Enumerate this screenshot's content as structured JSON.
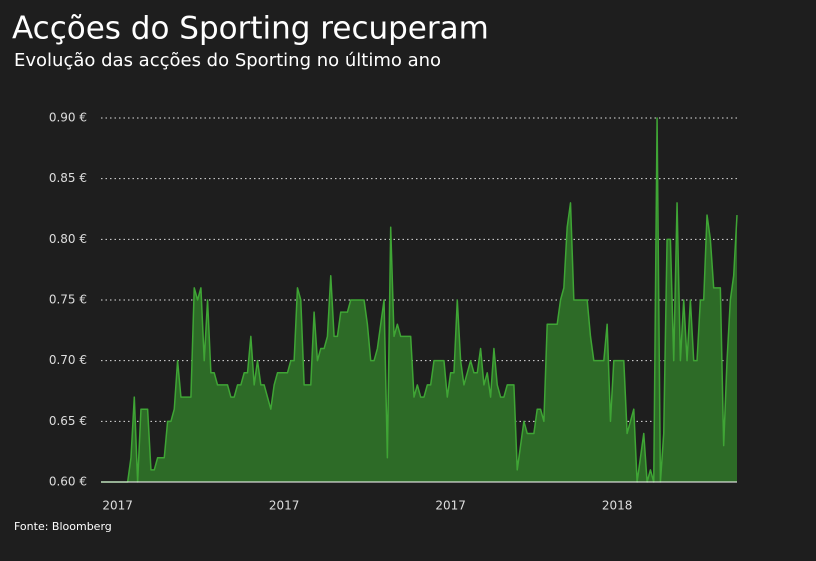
{
  "chart_data": {
    "type": "area",
    "title": "Acções do Sporting recuperam",
    "subtitle": "Evolução das acções do Sporting no último ano",
    "source": "Fonte: Bloomberg",
    "color": "#3fa535",
    "fill_color": "#2d6b27",
    "grid": true,
    "ylim": [
      0.6,
      0.9
    ],
    "yticks": [
      {
        "value": 0.6,
        "label": "0.60 €"
      },
      {
        "value": 0.65,
        "label": "0.65 €"
      },
      {
        "value": 0.7,
        "label": "0.70 €"
      },
      {
        "value": 0.75,
        "label": "0.75 €"
      },
      {
        "value": 0.8,
        "label": "0.80 €"
      },
      {
        "value": 0.85,
        "label": "0.85 €"
      },
      {
        "value": 0.9,
        "label": "0.90 €"
      }
    ],
    "categories": [
      null,
      null,
      null,
      null,
      null,
      "2017",
      null,
      null,
      null,
      null,
      null,
      null,
      null,
      null,
      null,
      null,
      null,
      null,
      null,
      null,
      null,
      null,
      null,
      null,
      null,
      null,
      null,
      null,
      null,
      null,
      null,
      null,
      null,
      null,
      null,
      null,
      null,
      null,
      null,
      null,
      null,
      null,
      null,
      null,
      null,
      null,
      null,
      null,
      null,
      null,
      null,
      null,
      null,
      null,
      null,
      "2017",
      null,
      null,
      null,
      null,
      null,
      null,
      null,
      null,
      null,
      null,
      null,
      null,
      null,
      null,
      null,
      null,
      null,
      null,
      null,
      null,
      null,
      null,
      null,
      null,
      null,
      null,
      null,
      null,
      null,
      null,
      null,
      null,
      null,
      null,
      null,
      null,
      null,
      null,
      null,
      null,
      null,
      null,
      null,
      null,
      null,
      null,
      null,
      null,
      null,
      "2017",
      null,
      null,
      null,
      null,
      null,
      null,
      null,
      null,
      null,
      null,
      null,
      null,
      null,
      null,
      null,
      null,
      null,
      null,
      null,
      null,
      null,
      null,
      null,
      null,
      null,
      null,
      null,
      null,
      null,
      null,
      null,
      null,
      null,
      null,
      null,
      null,
      null,
      null,
      null,
      null,
      null,
      null,
      null,
      null,
      null,
      null,
      null,
      null,
      null,
      "2018",
      null,
      null,
      null,
      null,
      null,
      null,
      null,
      null,
      null,
      null,
      null,
      null,
      null,
      null,
      null,
      null,
      null,
      null,
      null,
      null,
      null,
      null,
      null,
      null,
      null,
      null,
      null,
      null,
      null,
      null,
      null,
      null,
      null,
      null,
      null,
      null
    ],
    "values": [
      0.6,
      0.6,
      0.6,
      0.6,
      0.6,
      0.6,
      0.6,
      0.6,
      0.6,
      0.62,
      0.67,
      0.6,
      0.66,
      0.66,
      0.66,
      0.61,
      0.61,
      0.62,
      0.62,
      0.62,
      0.65,
      0.65,
      0.66,
      0.7,
      0.67,
      0.67,
      0.67,
      0.67,
      0.76,
      0.75,
      0.76,
      0.7,
      0.75,
      0.69,
      0.69,
      0.68,
      0.68,
      0.68,
      0.68,
      0.67,
      0.67,
      0.68,
      0.68,
      0.69,
      0.69,
      0.72,
      0.68,
      0.7,
      0.68,
      0.68,
      0.67,
      0.66,
      0.68,
      0.69,
      0.69,
      0.69,
      0.69,
      0.7,
      0.7,
      0.76,
      0.75,
      0.68,
      0.68,
      0.68,
      0.74,
      0.7,
      0.71,
      0.71,
      0.72,
      0.77,
      0.72,
      0.72,
      0.74,
      0.74,
      0.74,
      0.75,
      0.75,
      0.75,
      0.75,
      0.75,
      0.73,
      0.7,
      0.7,
      0.71,
      0.73,
      0.75,
      0.62,
      0.81,
      0.72,
      0.73,
      0.72,
      0.72,
      0.72,
      0.72,
      0.67,
      0.68,
      0.67,
      0.67,
      0.68,
      0.68,
      0.7,
      0.7,
      0.7,
      0.7,
      0.67,
      0.69,
      0.69,
      0.75,
      0.7,
      0.68,
      0.69,
      0.7,
      0.69,
      0.69,
      0.71,
      0.68,
      0.69,
      0.67,
      0.71,
      0.68,
      0.67,
      0.67,
      0.68,
      0.68,
      0.68,
      0.61,
      0.63,
      0.65,
      0.64,
      0.64,
      0.64,
      0.66,
      0.66,
      0.65,
      0.73,
      0.73,
      0.73,
      0.73,
      0.75,
      0.76,
      0.81,
      0.83,
      0.75,
      0.75,
      0.75,
      0.75,
      0.75,
      0.72,
      0.7,
      0.7,
      0.7,
      0.7,
      0.73,
      0.65,
      0.7,
      0.7,
      0.7,
      0.7,
      0.64,
      0.65,
      0.66,
      0.6,
      0.62,
      0.64,
      0.6,
      0.61,
      0.6,
      0.9,
      0.6,
      0.64,
      0.8,
      0.8,
      0.7,
      0.83,
      0.7,
      0.75,
      0.7,
      0.75,
      0.7,
      0.7,
      0.75,
      0.75,
      0.82,
      0.8,
      0.76,
      0.76,
      0.76,
      0.63,
      0.7,
      0.75,
      0.77,
      0.82
    ]
  }
}
